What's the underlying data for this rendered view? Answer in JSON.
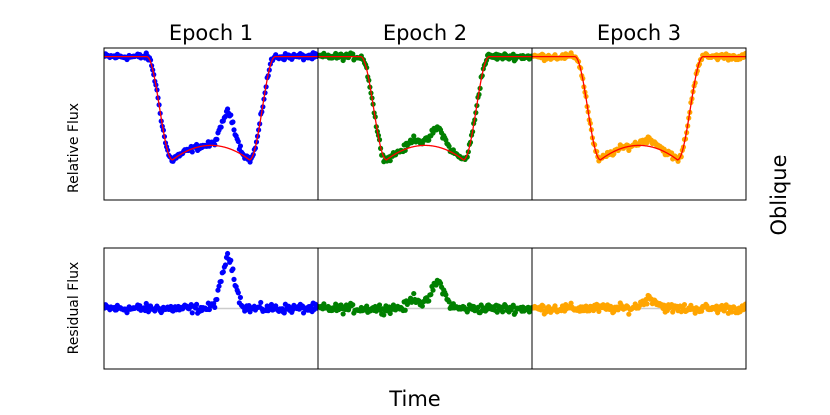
{
  "figure": {
    "row_label": "Oblique",
    "x_label": "Time",
    "y_label_top": "Relative Flux",
    "y_label_bottom": "Residual Flux"
  },
  "chart_data": {
    "type": "scatter",
    "panels": [
      {
        "title": "Epoch 1",
        "color": "#0000ff",
        "model_color": "#ff0000",
        "anomaly": [
          {
            "center": 0.58,
            "height": 0.25,
            "width": 0.03
          }
        ]
      },
      {
        "title": "Epoch 2",
        "color": "#008000",
        "model_color": "#ff0000",
        "anomaly": [
          {
            "center": 0.42,
            "height": -0.1,
            "width": 0.025
          },
          {
            "center": 0.43,
            "height": 0.13,
            "width": 0.03
          },
          {
            "center": 0.56,
            "height": 0.13,
            "width": 0.03
          }
        ]
      },
      {
        "title": "Epoch 3",
        "color": "#ffa500",
        "model_color": "#ff0000",
        "anomaly": [
          {
            "center": 0.55,
            "height": 0.05,
            "width": 0.035
          }
        ]
      }
    ],
    "model": {
      "depth": 0.72,
      "ingress": [
        0.2,
        0.32
      ],
      "egress": [
        0.68,
        0.8
      ],
      "xlim": [
        0,
        1
      ],
      "ylim_top": [
        0.0,
        1.06
      ],
      "ylim_bottom": [
        -0.3,
        0.3
      ]
    },
    "residual_line_color": "#cccccc",
    "x_ticks": "none",
    "y_ticks": "none",
    "grid": false
  }
}
